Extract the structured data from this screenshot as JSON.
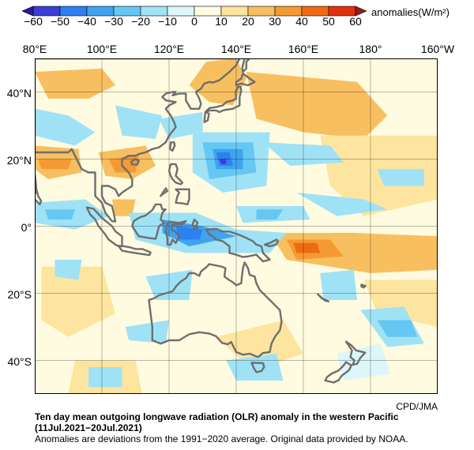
{
  "colorbar": {
    "unit": "anomalies(W/m²)",
    "ticks": [
      "−60",
      "−50",
      "−40",
      "−30",
      "−20",
      "−10",
      "0",
      "10",
      "20",
      "30",
      "40",
      "50",
      "60"
    ],
    "colors": [
      "#3c3cd6",
      "#2e7ff0",
      "#3fa3f0",
      "#66c8f2",
      "#9fe2f6",
      "#dcf6fa",
      "#fffbe0",
      "#fde5a0",
      "#f8bf60",
      "#f59a32",
      "#f06a14",
      "#e23010"
    ]
  },
  "map": {
    "lon_labels": [
      "80°E",
      "100°E",
      "120°E",
      "140°E",
      "160°E",
      "180°",
      "160°W"
    ],
    "lat_labels": [
      "40°N",
      "20°N",
      "0°",
      "20°S",
      "40°S"
    ],
    "coast_color": "#6e6e6e"
  },
  "credit": "CPD/JMA",
  "caption": {
    "title": "Ten day mean outgoing longwave radiation (OLR) anomaly in the western Pacific",
    "period": "(11Jul.2021−20Jul.2021)",
    "note": "Anomalies are deviations from the 1991−2020 average. Original data provided by NOAA."
  }
}
